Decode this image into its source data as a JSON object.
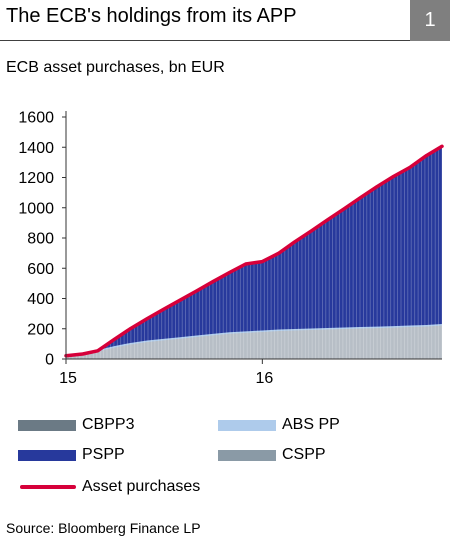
{
  "header": {
    "title": "The ECB's holdings from its APP",
    "figure_number": "1",
    "subtitle": "ECB asset purchases, bn EUR"
  },
  "source": "Source: Bloomberg Finance LP",
  "colors": {
    "CBPP3": "#6b7a85",
    "ABS_PP": "#aecbeb",
    "PSPP": "#27399c",
    "CSPP": "#8a9aa6",
    "asset_purchases": "#d6003a",
    "lower_fill": "#b7bec6"
  },
  "chart_data": {
    "type": "area",
    "title": "ECB asset purchases, bn EUR",
    "xlabel": "",
    "ylabel": "",
    "ylim": [
      0,
      1600
    ],
    "yticks": [
      0,
      200,
      400,
      600,
      800,
      1000,
      1200,
      1400,
      1600
    ],
    "xlim": [
      "2015-01-01",
      "2016-11-30"
    ],
    "xticks": [
      {
        "label": "15",
        "date": "2015-01-01"
      },
      {
        "label": "16",
        "date": "2016-01-01"
      }
    ],
    "grid": false,
    "stacked": true,
    "legend_position": "bottom",
    "dates": [
      "2015-01-01",
      "2015-02-01",
      "2015-03-01",
      "2015-04-01",
      "2015-05-01",
      "2015-06-01",
      "2015-07-01",
      "2015-08-01",
      "2015-09-01",
      "2015-10-01",
      "2015-11-01",
      "2015-12-01",
      "2016-01-01",
      "2016-02-01",
      "2016-03-01",
      "2016-04-01",
      "2016-05-01",
      "2016-06-01",
      "2016-07-01",
      "2016-08-01",
      "2016-09-01",
      "2016-10-01",
      "2016-11-01",
      "2016-11-30"
    ],
    "series": [
      {
        "name": "CBPP3",
        "values": [
          20,
          30,
          50,
          75,
          95,
          110,
          120,
          130,
          140,
          150,
          160,
          165,
          170,
          175,
          178,
          180,
          183,
          185,
          188,
          190,
          193,
          196,
          200,
          205
        ]
      },
      {
        "name": "ABS PP",
        "values": [
          2,
          3,
          4,
          5,
          6,
          7,
          8,
          9,
          10,
          11,
          12,
          13,
          14,
          15,
          16,
          17,
          17,
          18,
          18,
          19,
          19,
          20,
          20,
          21
        ]
      },
      {
        "name": "PSPP",
        "values": [
          0,
          0,
          0,
          50,
          100,
          150,
          200,
          250,
          300,
          350,
          400,
          450,
          460,
          510,
          580,
          650,
          720,
          780,
          840,
          900,
          960,
          1010,
          1080,
          1130
        ]
      },
      {
        "name": "CSPP",
        "values": [
          0,
          0,
          0,
          0,
          0,
          0,
          0,
          0,
          0,
          0,
          0,
          0,
          0,
          0,
          0,
          0,
          0,
          10,
          20,
          30,
          35,
          40,
          45,
          50
        ]
      },
      {
        "name": "Asset purchases",
        "type": "line",
        "values": [
          22,
          33,
          54,
          130,
          201,
          267,
          328,
          389,
          450,
          511,
          572,
          628,
          644,
          700,
          774,
          847,
          920,
          993,
          1066,
          1139,
          1207,
          1266,
          1345,
          1406
        ]
      }
    ]
  },
  "legend": [
    {
      "label": "CBPP3",
      "kind": "swatch",
      "color_key": "CBPP3"
    },
    {
      "label": "ABS PP",
      "kind": "swatch",
      "color_key": "ABS_PP"
    },
    {
      "label": "PSPP",
      "kind": "swatch",
      "color_key": "PSPP"
    },
    {
      "label": "CSPP",
      "kind": "swatch",
      "color_key": "CSPP"
    },
    {
      "label": "Asset purchases",
      "kind": "line",
      "color_key": "asset_purchases"
    }
  ]
}
